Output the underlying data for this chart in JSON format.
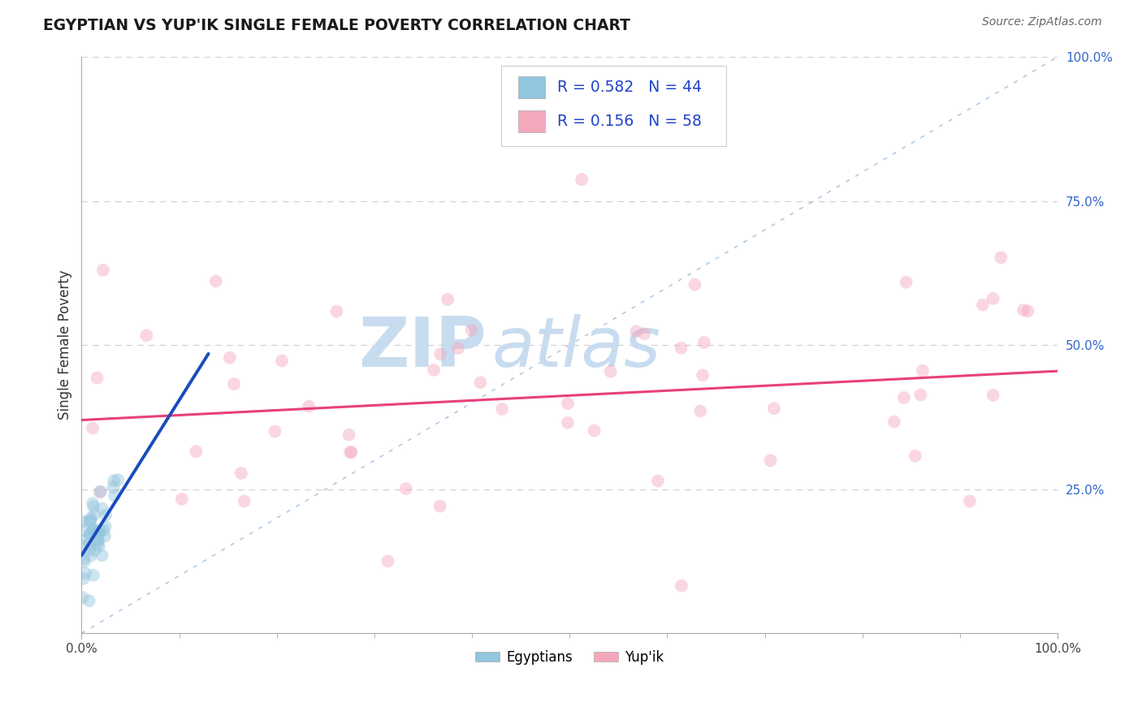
{
  "title": "EGYPTIAN VS YUP'IK SINGLE FEMALE POVERTY CORRELATION CHART",
  "source_text": "Source: ZipAtlas.com",
  "ylabel": "Single Female Poverty",
  "legend_r1": "R = 0.582",
  "legend_n1": "N = 44",
  "legend_r2": "R = 0.156",
  "legend_n2": "N = 58",
  "color_egyptian": "#92C5DE",
  "color_yupik": "#F4A8BB",
  "color_line_egyptian": "#1A4BBF",
  "color_line_yupik": "#E8407A",
  "color_diagonal": "#A8C4E0",
  "background_color": "#FFFFFF",
  "watermark_color": "#C8DCF0",
  "watermark_text_zip": "ZIP",
  "watermark_text_atlas": "atlas",
  "xlim": [
    0.0,
    1.0
  ],
  "ylim": [
    0.0,
    1.0
  ],
  "ytick_positions": [
    0.0,
    0.25,
    0.5,
    0.75,
    1.0
  ],
  "xtick_positions": [
    0.0,
    1.0
  ],
  "xtick_labels": [
    "0.0%",
    "100.0%"
  ],
  "ytick_labels_right": [
    "",
    "25.0%",
    "50.0%",
    "75.0%",
    "100.0%"
  ],
  "marker_size": 130,
  "marker_alpha": 0.45,
  "eg_trend_x0": 0.0,
  "eg_trend_y0": 0.135,
  "eg_trend_x1": 0.13,
  "eg_trend_y1": 0.485,
  "yu_trend_x0": 0.0,
  "yu_trend_y0": 0.37,
  "yu_trend_x1": 1.0,
  "yu_trend_y1": 0.455
}
